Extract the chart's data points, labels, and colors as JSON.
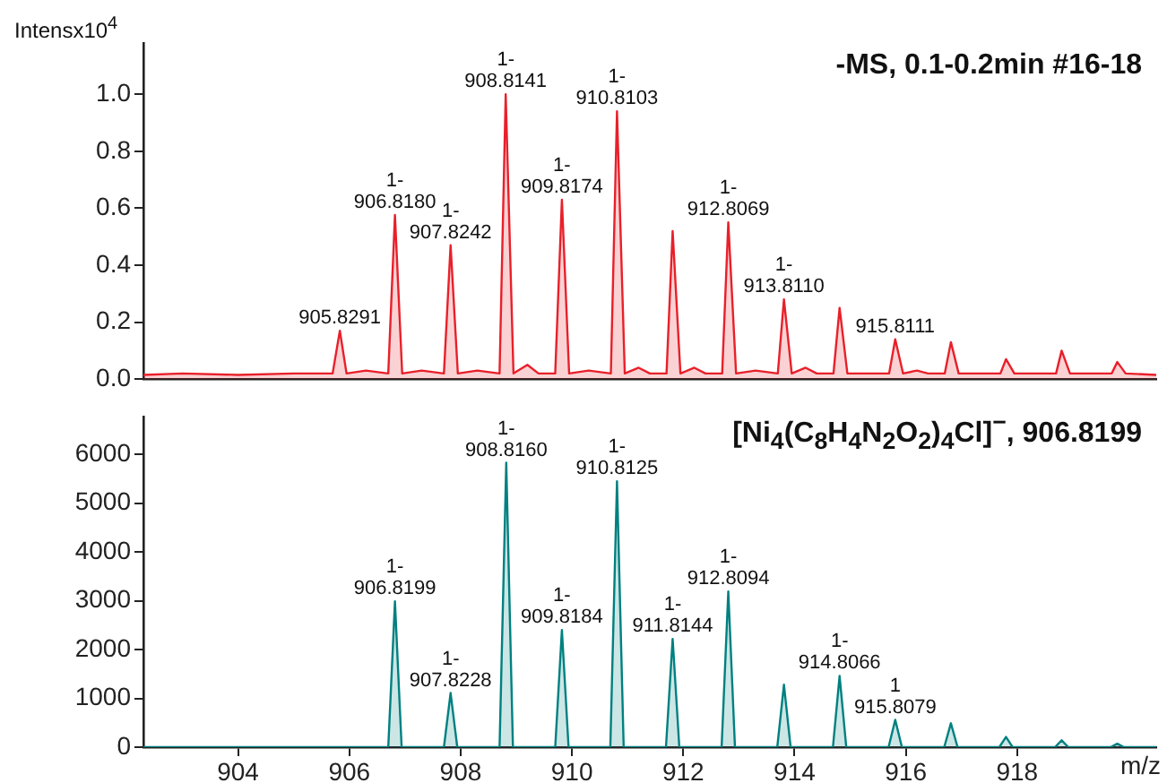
{
  "chart_data": [
    {
      "type": "area",
      "title": "-MS, 0.1-0.2min #16-18",
      "ylabel": "Intensx10$^{4}$",
      "tick_labels": "y",
      "xlim": [
        902.3,
        920.5
      ],
      "xticks": [
        904,
        906,
        908,
        910,
        912,
        914,
        916,
        918
      ],
      "ylim": [
        0,
        1.18
      ],
      "yticks": [
        {
          "value": 0,
          "label": "0.0"
        },
        0.2,
        0.4,
        0.6,
        0.8,
        {
          "value": 1,
          "label": "1.0"
        }
      ],
      "series": [
        {
          "color": "#e8202a",
          "x": [
            902.3,
            903,
            904,
            905,
            905.7,
            905.83,
            905.95,
            906.3,
            906.7,
            906.82,
            906.95,
            907.3,
            907.7,
            907.82,
            907.95,
            908.3,
            908.7,
            908.81,
            908.95,
            909.2,
            909.4,
            909.7,
            909.82,
            909.95,
            910.3,
            910.7,
            910.81,
            910.95,
            911.2,
            911.4,
            911.7,
            911.81,
            911.95,
            912.2,
            912.4,
            912.7,
            912.81,
            912.95,
            913.3,
            913.7,
            913.81,
            913.95,
            914.2,
            914.4,
            914.7,
            914.81,
            914.95,
            915.7,
            915.81,
            915.95,
            916.2,
            916.4,
            916.7,
            916.81,
            916.95,
            917.7,
            917.8,
            917.95,
            918.7,
            918.8,
            918.95,
            919.7,
            919.8,
            919.95,
            920.5
          ],
          "values": [
            0.015,
            0.02,
            0.015,
            0.02,
            0.02,
            0.17,
            0.02,
            0.03,
            0.02,
            0.576,
            0.02,
            0.03,
            0.02,
            0.47,
            0.02,
            0.03,
            0.02,
            1.0,
            0.02,
            0.05,
            0.02,
            0.02,
            0.63,
            0.02,
            0.03,
            0.02,
            0.94,
            0.02,
            0.04,
            0.02,
            0.02,
            0.52,
            0.02,
            0.04,
            0.02,
            0.02,
            0.55,
            0.02,
            0.03,
            0.02,
            0.28,
            0.02,
            0.04,
            0.02,
            0.02,
            0.25,
            0.02,
            0.02,
            0.14,
            0.02,
            0.03,
            0.02,
            0.02,
            0.13,
            0.02,
            0.02,
            0.07,
            0.02,
            0.02,
            0.1,
            0.02,
            0.02,
            0.06,
            0.02,
            0.015
          ]
        }
      ],
      "annotations": [
        {
          "text": "905.8291",
          "x": 905.83,
          "y": 0.17
        },
        {
          "text": "1-\n906.8180",
          "x": 906.82,
          "y": 0.576
        },
        {
          "text": "1-\n907.8242",
          "x": 907.82,
          "y": 0.47
        },
        {
          "text": "1-\n908.8141",
          "x": 908.81,
          "y": 1.0
        },
        {
          "text": "1-\n909.8174",
          "x": 909.82,
          "y": 0.63
        },
        {
          "text": "1-\n910.8103",
          "x": 910.81,
          "y": 0.94
        },
        {
          "text": "1-\n912.8069",
          "x": 912.81,
          "y": 0.55
        },
        {
          "text": "1-\n913.8110",
          "x": 913.81,
          "y": 0.28
        },
        {
          "text": "915.8111",
          "x": 915.81,
          "y": 0.14
        }
      ]
    },
    {
      "type": "area",
      "title": "[Ni$_{4}$(C$_{8}$H$_{4}$N$_{2}$O$_{2}$)$_{4}$Cl]$^{−}$, 906.8199",
      "xlabel": "m/z",
      "xlim": [
        902.3,
        920.5
      ],
      "xticks": [
        904,
        906,
        908,
        910,
        912,
        914,
        916,
        918
      ],
      "ylim": [
        0,
        6780
      ],
      "yticks": [
        0,
        1000,
        2000,
        3000,
        4000,
        5000,
        6000
      ],
      "series": [
        {
          "color": "#008080",
          "x": [
            902.3,
            906.7,
            906.82,
            906.94,
            907.7,
            907.82,
            907.94,
            908.7,
            908.82,
            908.94,
            909.7,
            909.82,
            909.94,
            910.69,
            910.81,
            910.93,
            911.69,
            911.81,
            911.93,
            912.69,
            912.81,
            912.93,
            913.69,
            913.81,
            913.93,
            914.69,
            914.81,
            914.93,
            915.69,
            915.81,
            915.93,
            916.69,
            916.81,
            916.93,
            917.68,
            917.8,
            917.92,
            918.68,
            918.8,
            918.92,
            919.68,
            919.8,
            919.92,
            920.5
          ],
          "values": [
            0,
            0,
            2990,
            0,
            0,
            1110,
            0,
            0,
            5830,
            0,
            0,
            2400,
            0,
            0,
            5450,
            0,
            0,
            2220,
            0,
            0,
            3190,
            0,
            0,
            1280,
            0,
            0,
            1460,
            0,
            0,
            560,
            0,
            0,
            490,
            0,
            0,
            210,
            0,
            0,
            140,
            0,
            0,
            70,
            0,
            0
          ]
        }
      ],
      "annotations": [
        {
          "text": "1-\n906.8199",
          "x": 906.82,
          "y": 2990
        },
        {
          "text": "1-\n907.8228",
          "x": 907.82,
          "y": 1110
        },
        {
          "text": "1-\n908.8160",
          "x": 908.82,
          "y": 5830
        },
        {
          "text": "1-\n909.8184",
          "x": 909.82,
          "y": 2400
        },
        {
          "text": "1-\n910.8125",
          "x": 910.81,
          "y": 5450
        },
        {
          "text": "1-\n911.8144",
          "x": 911.81,
          "y": 2220
        },
        {
          "text": "1-\n912.8094",
          "x": 912.81,
          "y": 3190
        },
        {
          "text": "1-\n914.8066",
          "x": 914.81,
          "y": 1460
        },
        {
          "text": "1\n915.8079",
          "x": 915.81,
          "y": 560
        }
      ]
    }
  ]
}
